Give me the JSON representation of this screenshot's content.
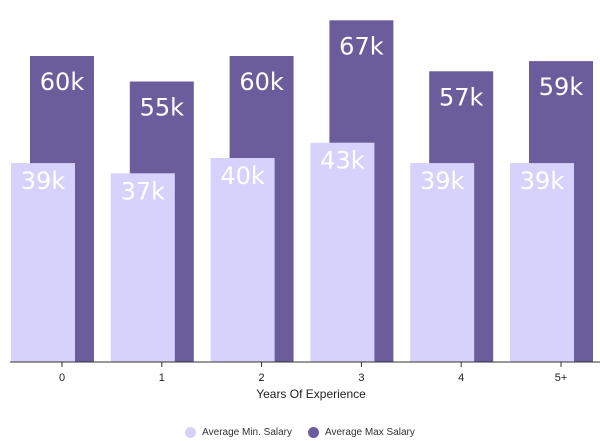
{
  "chart_data": {
    "type": "bar",
    "xlabel": "Years Of Experience",
    "ylabel": "",
    "categories": [
      "0",
      "1",
      "2",
      "3",
      "4",
      "5+"
    ],
    "ylim": [
      0,
      70
    ],
    "grid": false,
    "legend_position": "bottom",
    "series": [
      {
        "name": "Average Min. Salary",
        "color": "#d6d2fb",
        "values": [
          39,
          37,
          40,
          43,
          39,
          39
        ],
        "labels": [
          "39k",
          "37k",
          "40k",
          "43k",
          "39k",
          "39k"
        ]
      },
      {
        "name": "Average Max Salary",
        "color": "#6b5d9b",
        "values": [
          60,
          55,
          60,
          67,
          57,
          59
        ],
        "labels": [
          "60k",
          "55k",
          "60k",
          "67k",
          "57k",
          "59k"
        ]
      }
    ]
  }
}
